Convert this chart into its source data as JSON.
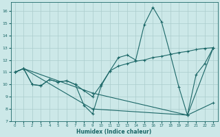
{
  "xlabel": "Humidex (Indice chaleur)",
  "bg_color": "#cce8e8",
  "grid_color": "#aacccc",
  "line_color": "#1a6666",
  "xlim": [
    -0.5,
    23.5
  ],
  "ylim": [
    7,
    16.7
  ],
  "yticks": [
    7,
    8,
    9,
    10,
    11,
    12,
    13,
    14,
    15,
    16
  ],
  "xticks": [
    0,
    1,
    2,
    3,
    4,
    5,
    6,
    7,
    8,
    9,
    10,
    11,
    12,
    13,
    14,
    15,
    16,
    17,
    18,
    19,
    20,
    21,
    22,
    23
  ],
  "line1_x": [
    0,
    1,
    2,
    3,
    4,
    5,
    6,
    7,
    8,
    9,
    10,
    11,
    12,
    13,
    14,
    15,
    16,
    17,
    18,
    19,
    20,
    21,
    22,
    23
  ],
  "line1_y": [
    11,
    11.3,
    10.0,
    9.9,
    10.4,
    10.2,
    10.3,
    10.0,
    8.3,
    7.6,
    9.9,
    11.1,
    12.2,
    12.4,
    12.0,
    14.9,
    16.3,
    15.1,
    12.5,
    9.8,
    7.5,
    10.8,
    11.7,
    13.0
  ],
  "line2_x": [
    0,
    1,
    2,
    3,
    4,
    5,
    6,
    7,
    8,
    9,
    10,
    11,
    12,
    13,
    14,
    15,
    16,
    17,
    18,
    19,
    20,
    21,
    22,
    23
  ],
  "line2_y": [
    11,
    11.3,
    10.0,
    9.9,
    10.4,
    10.2,
    10.3,
    10.0,
    9.5,
    9.0,
    10.0,
    11.1,
    11.5,
    11.7,
    11.9,
    12.0,
    12.2,
    12.3,
    12.45,
    12.6,
    12.7,
    12.85,
    12.95,
    13.0
  ],
  "line3_x": [
    0,
    1,
    9,
    20,
    23
  ],
  "line3_y": [
    11,
    11.3,
    9.3,
    7.5,
    8.5
  ],
  "line4_x": [
    0,
    1,
    9,
    20,
    23
  ],
  "line4_y": [
    11,
    11.3,
    8.0,
    7.5,
    13.0
  ]
}
